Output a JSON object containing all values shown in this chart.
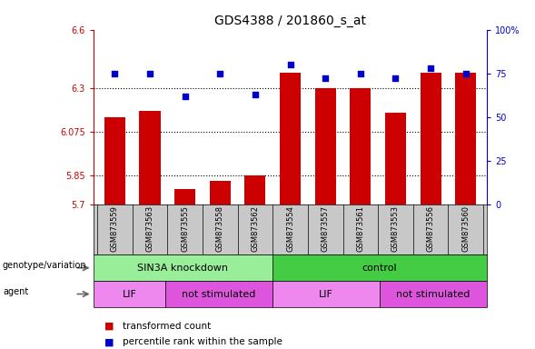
{
  "title": "GDS4388 / 201860_s_at",
  "samples": [
    "GSM873559",
    "GSM873563",
    "GSM873555",
    "GSM873558",
    "GSM873562",
    "GSM873554",
    "GSM873557",
    "GSM873561",
    "GSM873553",
    "GSM873556",
    "GSM873560"
  ],
  "bar_values": [
    6.15,
    6.18,
    5.78,
    5.82,
    5.85,
    6.38,
    6.3,
    6.3,
    6.17,
    6.38,
    6.38
  ],
  "dot_values": [
    75,
    75,
    62,
    75,
    63,
    80,
    72,
    75,
    72,
    78,
    75
  ],
  "ylim_left": [
    5.7,
    6.6
  ],
  "ylim_right": [
    0,
    100
  ],
  "yticks_left": [
    5.7,
    5.85,
    6.075,
    6.3,
    6.6
  ],
  "ytick_labels_left": [
    "5.7",
    "5.85",
    "6.075",
    "6.3",
    "6.6"
  ],
  "yticks_right": [
    0,
    25,
    50,
    75,
    100
  ],
  "ytick_labels_right": [
    "0",
    "25",
    "50",
    "75",
    "100%"
  ],
  "hlines": [
    5.85,
    6.075,
    6.3
  ],
  "bar_color": "#cc0000",
  "dot_color": "#0000cc",
  "bar_width": 0.6,
  "groups": [
    {
      "label": "SIN3A knockdown",
      "start": 0,
      "end": 5,
      "color": "#99ee99"
    },
    {
      "label": "control",
      "start": 5,
      "end": 11,
      "color": "#44cc44"
    }
  ],
  "agents": [
    {
      "label": "LIF",
      "start": 0,
      "end": 2,
      "color": "#ee88ee"
    },
    {
      "label": "not stimulated",
      "start": 2,
      "end": 5,
      "color": "#dd55dd"
    },
    {
      "label": "LIF",
      "start": 5,
      "end": 8,
      "color": "#ee88ee"
    },
    {
      "label": "not stimulated",
      "start": 8,
      "end": 11,
      "color": "#dd55dd"
    }
  ],
  "legend_items": [
    {
      "label": "transformed count",
      "color": "#cc0000"
    },
    {
      "label": "percentile rank within the sample",
      "color": "#0000cc"
    }
  ],
  "left_label_genotype": "genotype/variation",
  "left_label_agent": "agent",
  "axis_left_color": "#cc0000",
  "axis_right_color": "#0000cc",
  "sample_bg_color": "#c8c8c8"
}
